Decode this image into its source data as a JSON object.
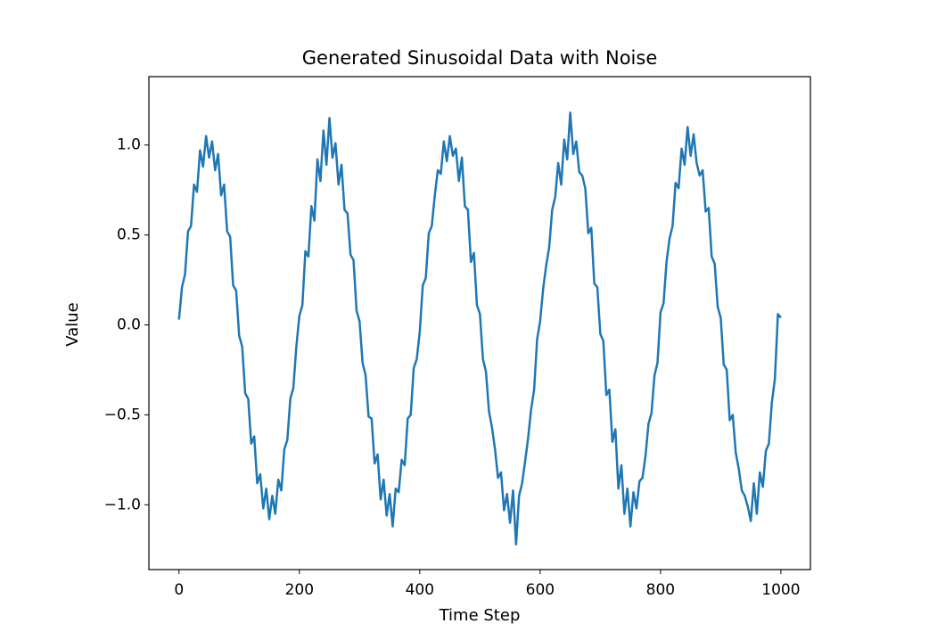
{
  "chart_data": {
    "type": "line",
    "title": "Generated Sinusoidal Data with Noise",
    "xlabel": "Time Step",
    "ylabel": "Value",
    "x": [
      0,
      5,
      10,
      15,
      20,
      25,
      30,
      35,
      40,
      45,
      50,
      55,
      60,
      65,
      70,
      75,
      80,
      85,
      90,
      95,
      100,
      105,
      110,
      115,
      120,
      125,
      130,
      135,
      140,
      145,
      150,
      155,
      160,
      165,
      170,
      175,
      180,
      185,
      190,
      195,
      200,
      205,
      210,
      215,
      220,
      225,
      230,
      235,
      240,
      245,
      250,
      255,
      260,
      265,
      270,
      275,
      280,
      285,
      290,
      295,
      300,
      305,
      310,
      315,
      320,
      325,
      330,
      335,
      340,
      345,
      350,
      355,
      360,
      365,
      370,
      375,
      380,
      385,
      390,
      395,
      400,
      405,
      410,
      415,
      420,
      425,
      430,
      435,
      440,
      445,
      450,
      455,
      460,
      465,
      470,
      475,
      480,
      485,
      490,
      495,
      500,
      505,
      510,
      515,
      520,
      525,
      530,
      535,
      540,
      545,
      550,
      555,
      560,
      565,
      570,
      575,
      580,
      585,
      590,
      595,
      600,
      605,
      610,
      615,
      620,
      625,
      630,
      635,
      640,
      645,
      650,
      655,
      660,
      665,
      670,
      675,
      680,
      685,
      690,
      695,
      700,
      705,
      710,
      715,
      720,
      725,
      730,
      735,
      740,
      745,
      750,
      755,
      760,
      765,
      770,
      775,
      780,
      785,
      790,
      795,
      800,
      805,
      810,
      815,
      820,
      825,
      830,
      835,
      840,
      845,
      850,
      855,
      860,
      865,
      870,
      875,
      880,
      885,
      890,
      895,
      900,
      905,
      910,
      915,
      920,
      925,
      930,
      935,
      940,
      945,
      950,
      955,
      960,
      965,
      970,
      975,
      980,
      985,
      990,
      995,
      1000
    ],
    "series": [
      {
        "name": "Value",
        "color": "#1f77b4",
        "values": [
          0.03,
          0.21,
          0.28,
          0.52,
          0.55,
          0.78,
          0.74,
          0.97,
          0.88,
          1.05,
          0.93,
          1.02,
          0.86,
          0.95,
          0.72,
          0.78,
          0.52,
          0.49,
          0.22,
          0.19,
          -0.06,
          -0.12,
          -0.38,
          -0.41,
          -0.66,
          -0.62,
          -0.88,
          -0.83,
          -1.02,
          -0.91,
          -1.08,
          -0.95,
          -1.05,
          -0.86,
          -0.92,
          -0.69,
          -0.64,
          -0.41,
          -0.35,
          -0.12,
          0.05,
          0.11,
          0.41,
          0.38,
          0.66,
          0.58,
          0.92,
          0.8,
          1.08,
          0.89,
          1.15,
          0.93,
          1.01,
          0.78,
          0.89,
          0.64,
          0.62,
          0.39,
          0.36,
          0.08,
          0.02,
          -0.21,
          -0.28,
          -0.51,
          -0.52,
          -0.77,
          -0.72,
          -0.97,
          -0.86,
          -1.06,
          -0.94,
          -1.12,
          -0.91,
          -0.93,
          -0.75,
          -0.78,
          -0.52,
          -0.5,
          -0.24,
          -0.19,
          -0.04,
          0.22,
          0.26,
          0.51,
          0.55,
          0.72,
          0.86,
          0.84,
          1.02,
          0.91,
          1.05,
          0.94,
          0.98,
          0.8,
          0.93,
          0.66,
          0.64,
          0.35,
          0.4,
          0.11,
          0.06,
          -0.19,
          -0.26,
          -0.48,
          -0.57,
          -0.69,
          -0.85,
          -0.82,
          -1.03,
          -0.94,
          -1.1,
          -0.92,
          -1.22,
          -0.95,
          -0.88,
          -0.76,
          -0.63,
          -0.47,
          -0.36,
          -0.08,
          0.02,
          0.2,
          0.33,
          0.43,
          0.64,
          0.71,
          0.9,
          0.78,
          1.03,
          0.92,
          1.18,
          0.95,
          1.02,
          0.85,
          0.83,
          0.76,
          0.51,
          0.54,
          0.23,
          0.21,
          -0.05,
          -0.09,
          -0.39,
          -0.36,
          -0.65,
          -0.58,
          -0.91,
          -0.78,
          -1.05,
          -0.91,
          -1.12,
          -0.93,
          -1.02,
          -0.87,
          -0.85,
          -0.73,
          -0.55,
          -0.49,
          -0.28,
          -0.21,
          0.07,
          0.12,
          0.35,
          0.48,
          0.55,
          0.79,
          0.76,
          0.98,
          0.89,
          1.1,
          0.94,
          1.06,
          0.9,
          0.83,
          0.86,
          0.63,
          0.65,
          0.38,
          0.34,
          0.1,
          0.04,
          -0.22,
          -0.25,
          -0.53,
          -0.5,
          -0.71,
          -0.8,
          -0.92,
          -0.95,
          -1.01,
          -1.09,
          -0.88,
          -1.05,
          -0.82,
          -0.9,
          -0.7,
          -0.66,
          -0.43,
          -0.3,
          0.06,
          0.04
        ]
      }
    ],
    "xlim": [
      -50,
      1049
    ],
    "ylim": [
      -1.36,
      1.38
    ],
    "xticks": [
      0,
      200,
      400,
      600,
      800,
      1000
    ],
    "yticks": [
      {
        "value": -1,
        "label": "−1.0"
      },
      {
        "value": -0.5,
        "label": "−0.5"
      },
      {
        "value": 0,
        "label": "0.0"
      },
      {
        "value": 0.5,
        "label": "0.5"
      },
      {
        "value": 1,
        "label": "1.0"
      }
    ],
    "grid": false
  }
}
